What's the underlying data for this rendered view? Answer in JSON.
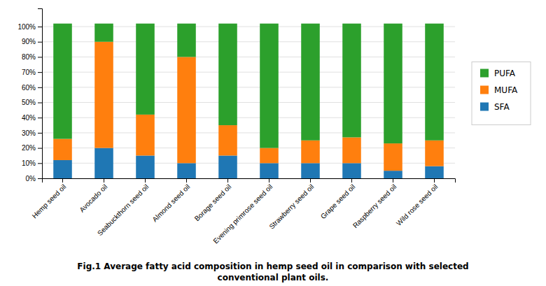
{
  "chart_data": {
    "type": "bar",
    "stacked": true,
    "title": "Fig.1  Average fatty acid composition in hemp seed oil in comparison with selected",
    "subtitle": "conventional plant oils.",
    "categories": [
      "Hemp seed oil",
      "Avocado oil",
      "Seabuckthorn seed oil",
      "Almond seed oil",
      "Borage seed oil",
      "Evening primrose seed oil",
      "Strawberry seed oil",
      "Grape seed oil",
      "Raspberry seed oil",
      "Wild rose seed oil"
    ],
    "series": [
      {
        "name": "SFA",
        "values": [
          12,
          20,
          15,
          10,
          15,
          10,
          10,
          10,
          5,
          8
        ]
      },
      {
        "name": "MUFA",
        "values": [
          14,
          70,
          27,
          70,
          20,
          10,
          15,
          17,
          18,
          17
        ]
      },
      {
        "name": "PUFA",
        "values": [
          76,
          12,
          60,
          22,
          67,
          82,
          77,
          75,
          79,
          77
        ]
      }
    ],
    "ylim": [
      0,
      112
    ],
    "yticks": [
      {
        "value": 0,
        "label": "0%"
      },
      {
        "value": 10,
        "label": "10%"
      },
      {
        "value": 20,
        "label": "20%"
      },
      {
        "value": 30,
        "label": "30%"
      },
      {
        "value": 40,
        "label": "40%"
      },
      {
        "value": 50,
        "label": "50%"
      },
      {
        "value": 60,
        "label": "60%"
      },
      {
        "value": 70,
        "label": "70%"
      },
      {
        "value": 80,
        "label": "80%"
      },
      {
        "value": 90,
        "label": "90%"
      },
      {
        "value": 100,
        "label": "100%"
      }
    ],
    "grid": true,
    "legend": "right"
  }
}
